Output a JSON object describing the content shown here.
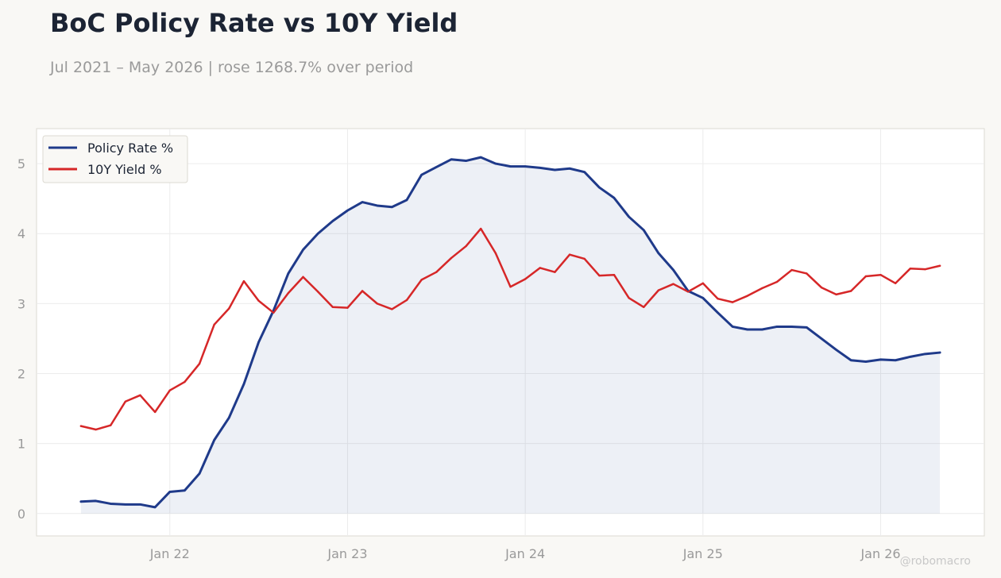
{
  "header": {
    "title": "BoC Policy Rate vs 10Y Yield",
    "subtitle": "Jul 2021 – May 2026 | rose 1268.7% over period"
  },
  "watermark": "@robomacro",
  "colors": {
    "policy": "#1f3a8a",
    "yield": "#d62728",
    "fill": "#e8e9f2",
    "grid": "#ececec",
    "axis_text": "#9a9a9a",
    "frame": "#dcdad2"
  },
  "chart_data": {
    "type": "line",
    "x": [
      "2021-07",
      "2021-08",
      "2021-09",
      "2021-10",
      "2021-11",
      "2021-12",
      "2022-01",
      "2022-02",
      "2022-03",
      "2022-04",
      "2022-05",
      "2022-06",
      "2022-07",
      "2022-08",
      "2022-09",
      "2022-10",
      "2022-11",
      "2022-12",
      "2023-01",
      "2023-02",
      "2023-03",
      "2023-04",
      "2023-05",
      "2023-06",
      "2023-07",
      "2023-08",
      "2023-09",
      "2023-10",
      "2023-11",
      "2023-12",
      "2024-01",
      "2024-02",
      "2024-03",
      "2024-04",
      "2024-05",
      "2024-06",
      "2024-07",
      "2024-08",
      "2024-09",
      "2024-10",
      "2024-11",
      "2024-12",
      "2025-01",
      "2025-02",
      "2025-03",
      "2025-04",
      "2025-05",
      "2025-06",
      "2025-07",
      "2025-08",
      "2025-09",
      "2025-10",
      "2025-11",
      "2025-12",
      "2026-01",
      "2026-02",
      "2026-03",
      "2026-04",
      "2026-05"
    ],
    "series": [
      {
        "name": "Policy Rate %",
        "values": [
          0.17,
          0.18,
          0.14,
          0.13,
          0.13,
          0.09,
          0.31,
          0.33,
          0.57,
          1.05,
          1.37,
          1.85,
          2.45,
          2.9,
          3.43,
          3.77,
          4.0,
          4.18,
          4.33,
          4.45,
          4.4,
          4.38,
          4.48,
          4.84,
          4.95,
          5.06,
          5.04,
          5.09,
          5.0,
          4.96,
          4.96,
          4.94,
          4.91,
          4.93,
          4.88,
          4.66,
          4.51,
          4.24,
          4.05,
          3.72,
          3.48,
          3.18,
          3.08,
          2.87,
          2.67,
          2.63,
          2.63,
          2.67,
          2.67,
          2.66,
          2.5,
          2.34,
          2.19,
          2.17,
          2.2,
          2.19,
          2.24,
          2.28,
          2.3
        ],
        "fill": true
      },
      {
        "name": "10Y Yield %",
        "values": [
          1.25,
          1.2,
          1.26,
          1.6,
          1.69,
          1.45,
          1.76,
          1.88,
          2.14,
          2.7,
          2.93,
          3.32,
          3.04,
          2.87,
          3.15,
          3.38,
          3.17,
          2.95,
          2.94,
          3.18,
          3.0,
          2.92,
          3.05,
          3.34,
          3.45,
          3.65,
          3.82,
          4.07,
          3.72,
          3.24,
          3.35,
          3.51,
          3.45,
          3.7,
          3.64,
          3.4,
          3.41,
          3.08,
          2.95,
          3.19,
          3.28,
          3.17,
          3.29,
          3.07,
          3.02,
          3.11,
          3.22,
          3.31,
          3.48,
          3.43,
          3.23,
          3.13,
          3.18,
          3.39,
          3.41,
          3.29,
          3.5,
          3.49,
          3.54
        ],
        "fill": false
      }
    ],
    "x_ticks": [
      "Jan 22",
      "Jan 23",
      "Jan 24",
      "Jan 25",
      "Jan 26"
    ],
    "x_tick_dates": [
      "2022-01",
      "2023-01",
      "2024-01",
      "2025-01",
      "2026-01"
    ],
    "y_ticks": [
      0,
      1,
      2,
      3,
      4,
      5
    ],
    "xlim": [
      "2021-04",
      "2026-08"
    ],
    "ylim": [
      -0.32,
      5.5
    ],
    "grid": true,
    "legend": "top-left",
    "title": "BoC Policy Rate vs 10Y Yield",
    "subtitle": "Jul 2021 – May 2026 | rose 1268.7% over period"
  }
}
